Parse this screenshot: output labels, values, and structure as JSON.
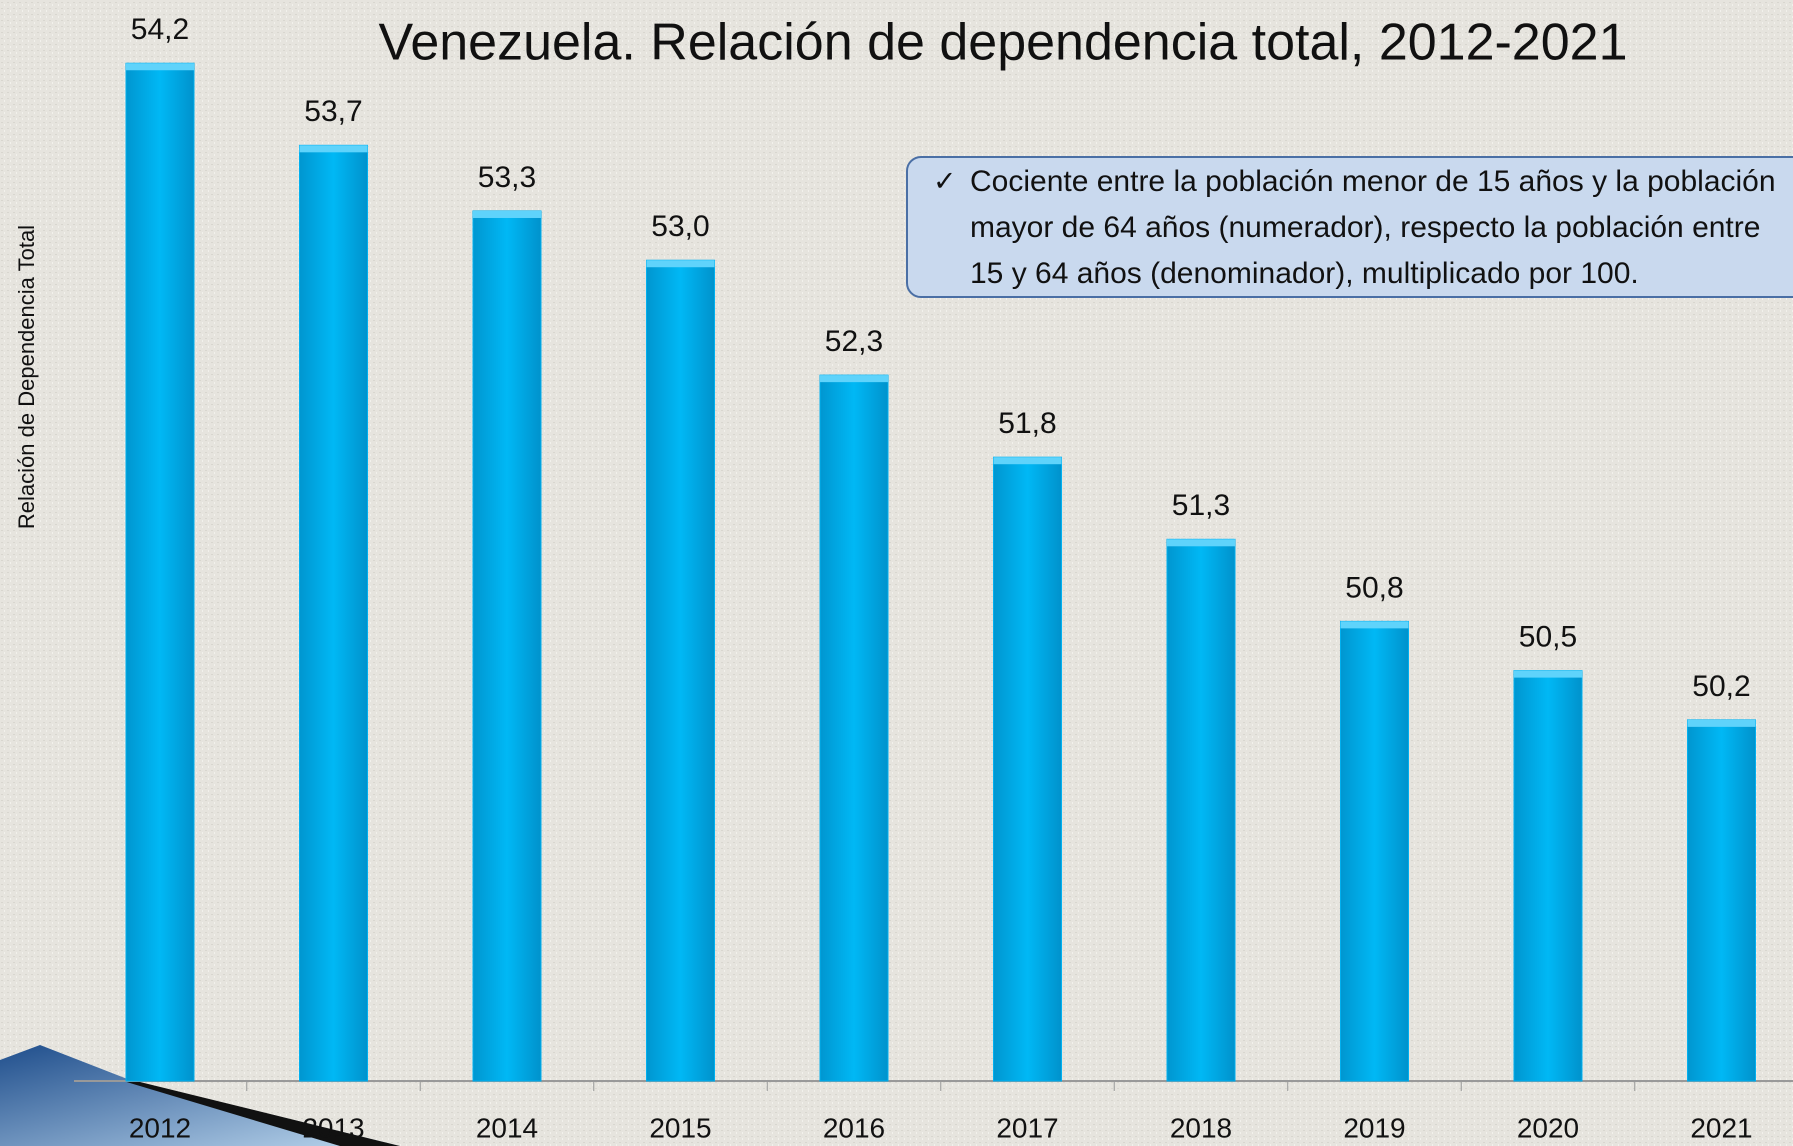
{
  "chart_data": {
    "type": "bar",
    "title": "Venezuela. Relación de dependencia total, 2012-2021",
    "ylabel": "Relación de Dependencia Total",
    "annotation": [
      "Cociente entre la población menor de 15 años y la población",
      "mayor de 64 años (numerador), respecto la población entre",
      "15 y 64 años (denominador), multiplicado por 100."
    ],
    "categories": [
      "2012",
      "2013",
      "2014",
      "2015",
      "2016",
      "2017",
      "2018",
      "2019",
      "2020",
      "2021"
    ],
    "values": [
      54.2,
      53.7,
      53.3,
      53.0,
      52.3,
      51.8,
      51.3,
      50.8,
      50.5,
      50.2
    ],
    "value_labels": [
      "54,2",
      "53,7",
      "53,3",
      "53,0",
      "52,3",
      "51,8",
      "51,3",
      "50,8",
      "50,5",
      "50,2"
    ],
    "color": "#00b0f0",
    "ylim": [
      48,
      54.5
    ]
  }
}
